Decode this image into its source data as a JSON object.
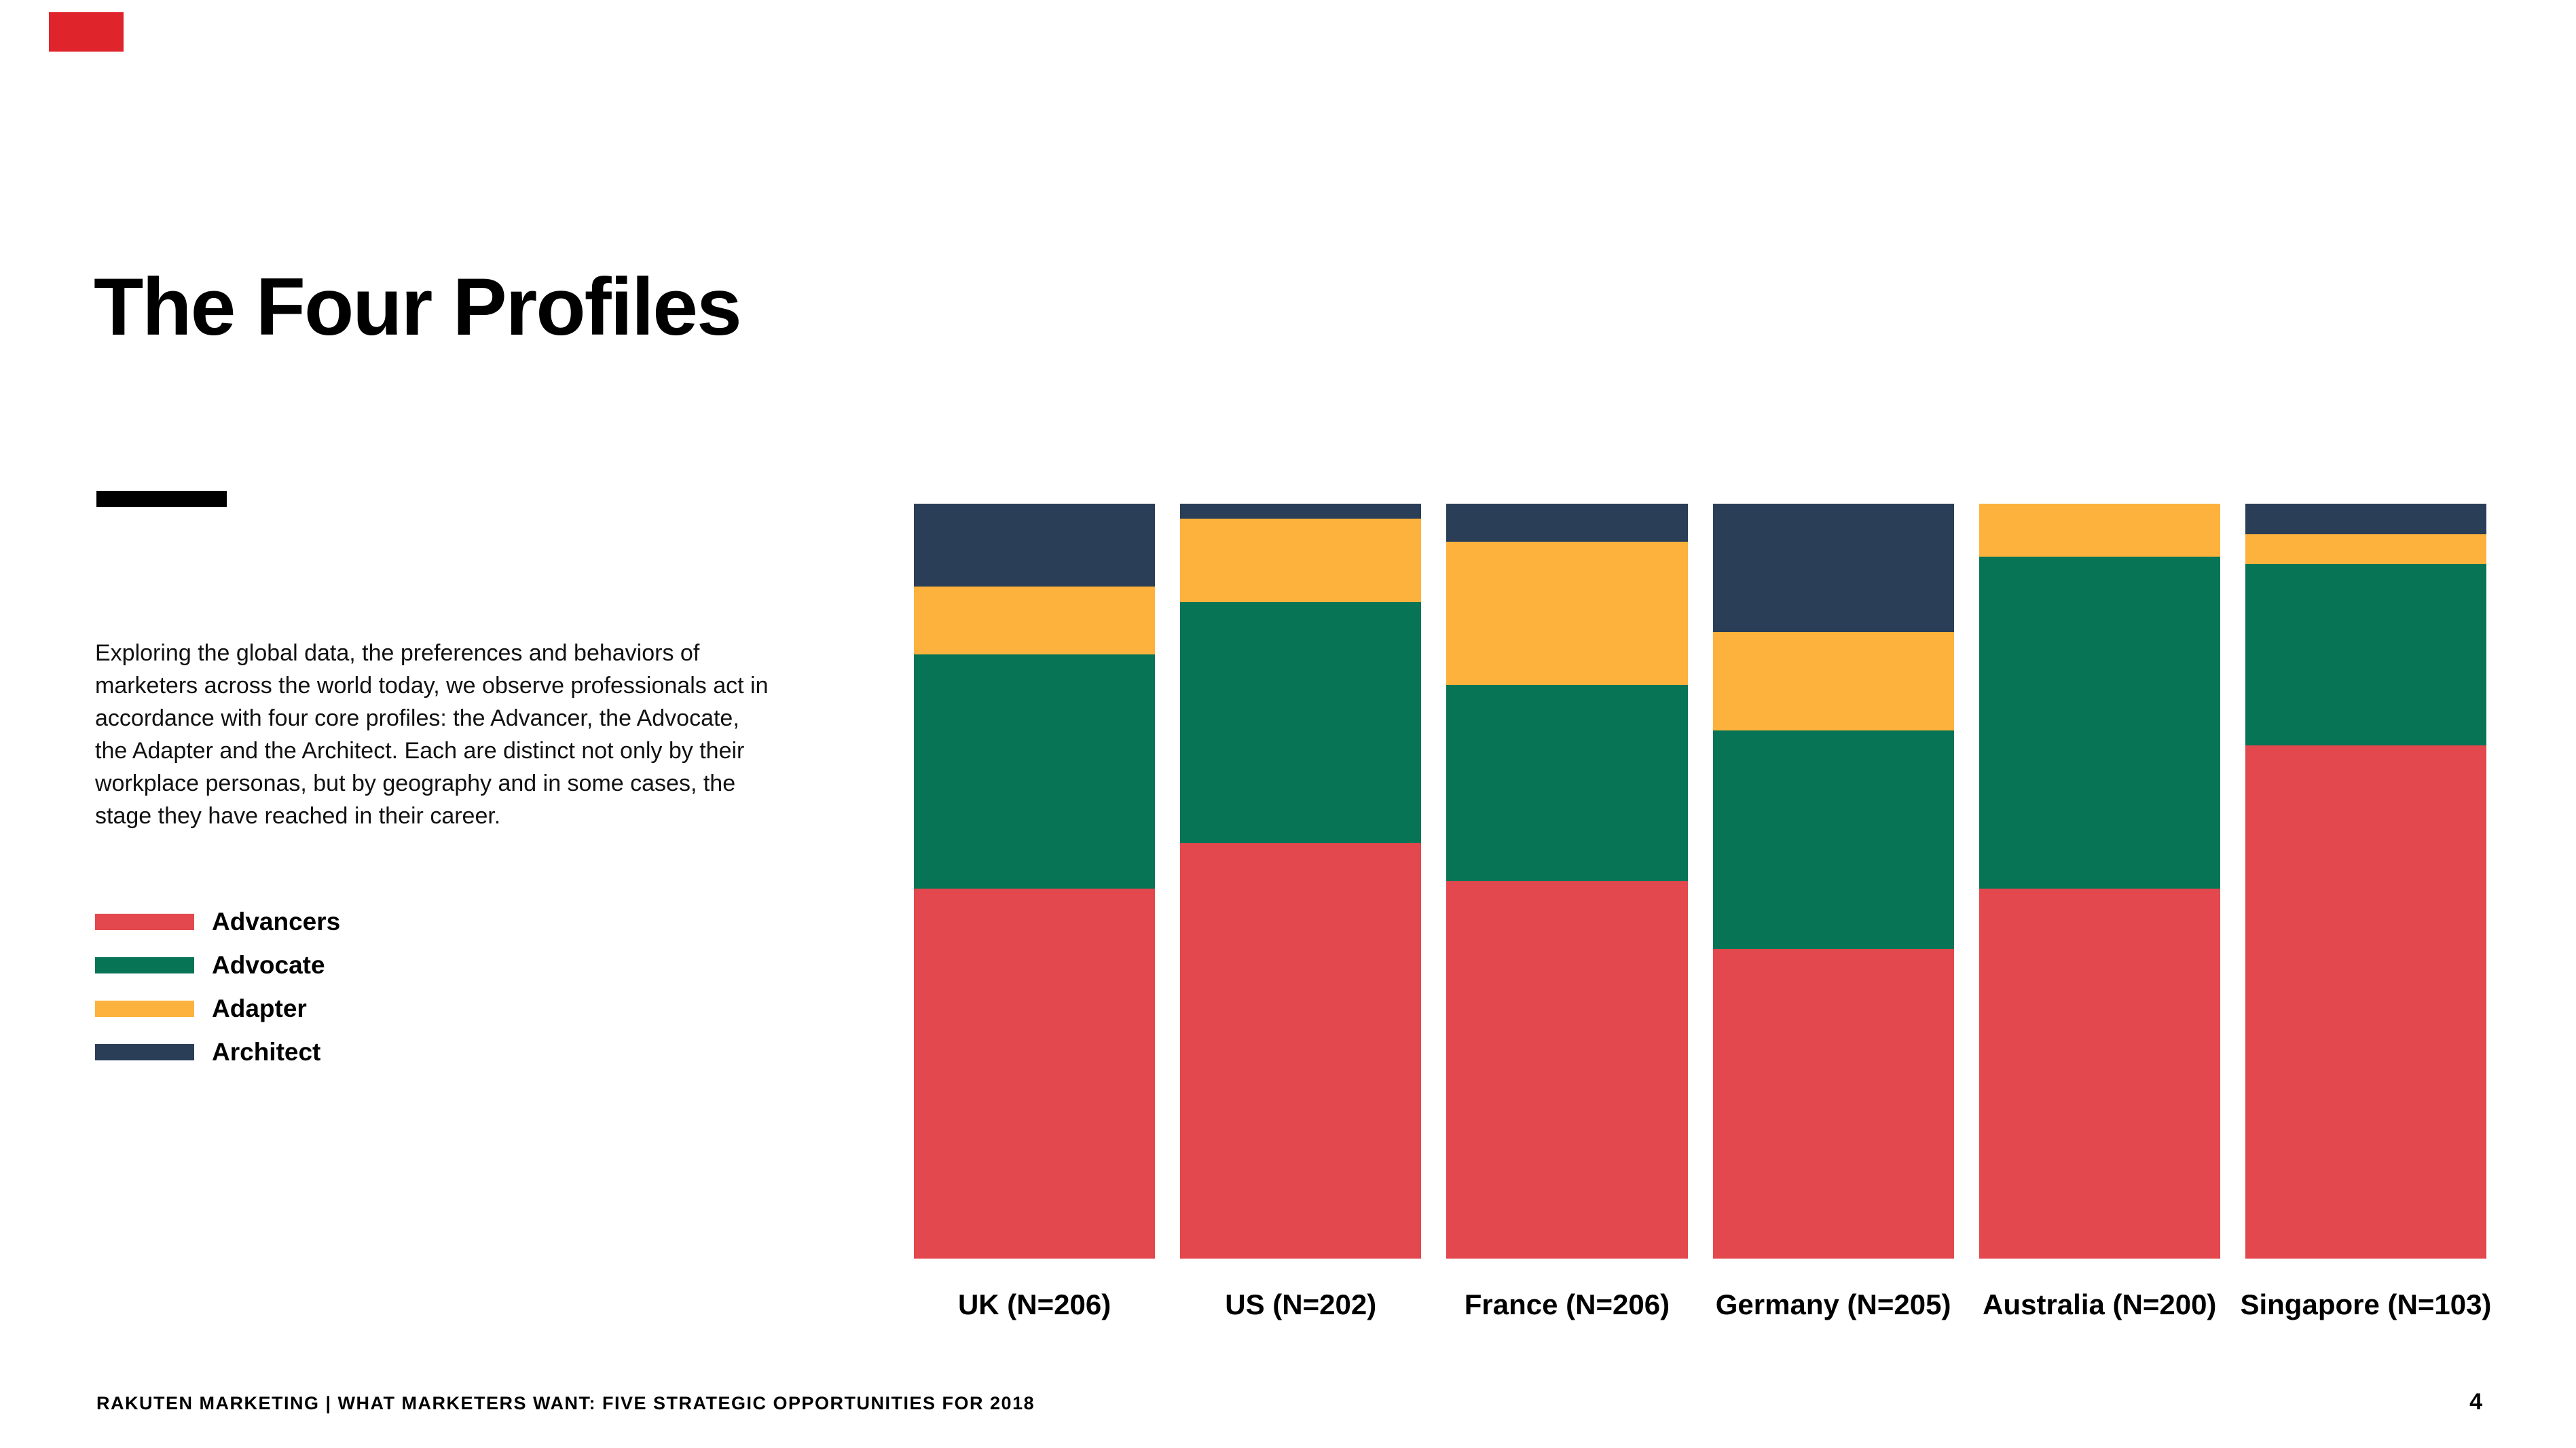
{
  "slide": {
    "brand_color": "#E0242B",
    "title": "The Four Profiles",
    "body_text": "Exploring the global data, the preferences and behaviors of\nmarketers across the world today, we observe professionals act in\naccordance with four core profiles: the Advancer, the Advocate,\nthe Adapter and the Architect. Each are distinct not only by their\nworkplace personas, but by geography and in some cases, the\nstage they have reached in their career.",
    "footer": "RAKUTEN MARKETING | WHAT MARKETERS WANT: FIVE STRATEGIC OPPORTUNITIES FOR 2018",
    "page_number": "4"
  },
  "legend": [
    {
      "label": "Advancers",
      "color": "#E2484D"
    },
    {
      "label": "Advocate",
      "color": "#077456"
    },
    {
      "label": "Adapter",
      "color": "#FCB23C"
    },
    {
      "label": "Architect",
      "color": "#2A3E58"
    }
  ],
  "chart_data": {
    "type": "bar",
    "variant": "stacked-100-percent",
    "title": "",
    "xlabel": "",
    "ylabel": "",
    "ylim": [
      0,
      100
    ],
    "axes_visible": false,
    "grid": false,
    "legend_position": "left",
    "categories": [
      "UK (N=206)",
      "US (N=202)",
      "France (N=206)",
      "Germany (N=205)",
      "Australia (N=200)",
      "Singapore (N=103)"
    ],
    "stack_order_bottom_to_top": [
      "Advancers",
      "Advocate",
      "Adapter",
      "Architect"
    ],
    "series": [
      {
        "name": "Advancers",
        "color": "#E2484D",
        "values": [
          49,
          55,
          50,
          41,
          49,
          68
        ]
      },
      {
        "name": "Advocate",
        "color": "#077456",
        "values": [
          31,
          32,
          26,
          29,
          44,
          24
        ]
      },
      {
        "name": "Adapter",
        "color": "#FCB23C",
        "values": [
          9,
          11,
          19,
          13,
          7,
          4
        ]
      },
      {
        "name": "Architect",
        "color": "#2A3E58",
        "values": [
          11,
          2,
          5,
          17,
          0,
          4
        ]
      }
    ]
  }
}
